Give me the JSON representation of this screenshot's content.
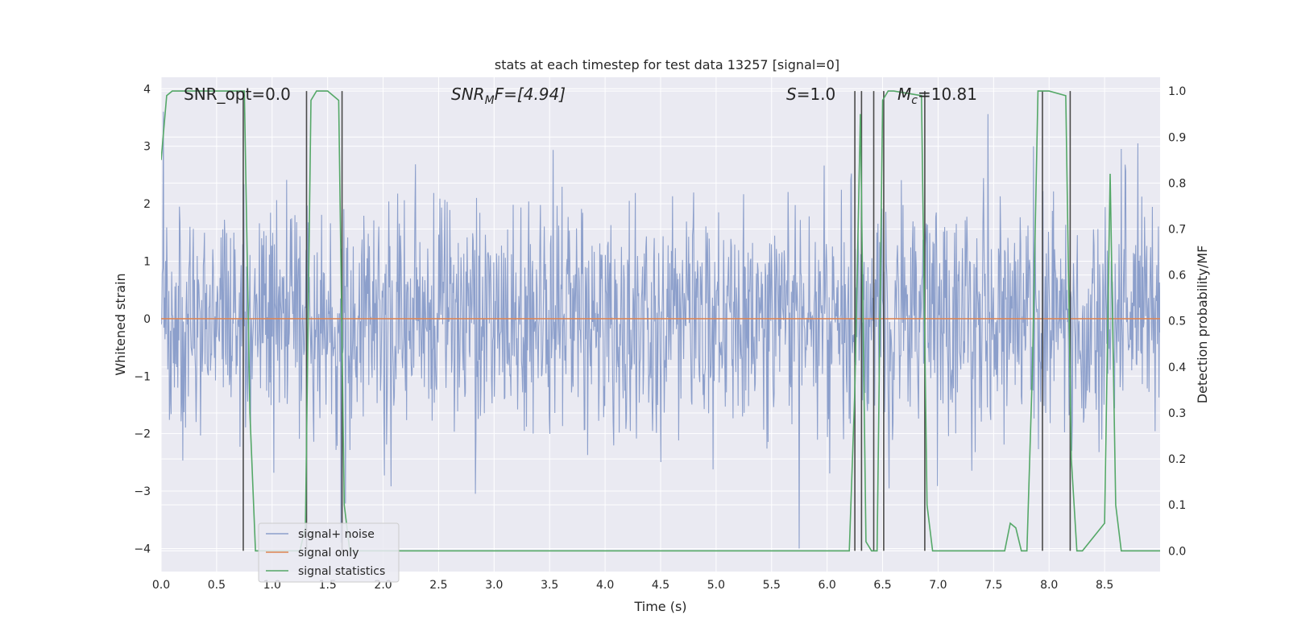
{
  "chart_data": {
    "type": "line",
    "title": "stats at each timestep for test data 13257 [signal=0]",
    "xlabel": "Time (s)",
    "ylabel": "Whitened strain",
    "y2label": "Detection probability/MF",
    "xlim": [
      0.0,
      9.0
    ],
    "ylim": [
      -4.4,
      4.2
    ],
    "y2lim": [
      -0.045,
      1.03
    ],
    "xticks": [
      "0.0",
      "0.5",
      "1.0",
      "1.5",
      "2.0",
      "2.5",
      "3.0",
      "3.5",
      "4.0",
      "4.5",
      "5.0",
      "5.5",
      "6.0",
      "6.5",
      "7.0",
      "7.5",
      "8.0",
      "8.5"
    ],
    "yticks": [
      "−4",
      "−3",
      "−2",
      "−1",
      "0",
      "1",
      "2",
      "3",
      "4"
    ],
    "y2ticks": [
      "0.0",
      "0.1",
      "0.2",
      "0.3",
      "0.4",
      "0.5",
      "0.6",
      "0.7",
      "0.8",
      "0.9",
      "1.0"
    ],
    "grid": true,
    "legend_position": "lower-left",
    "annotations": {
      "snr_opt": "SNR_opt=0.0",
      "snr_mf_pre": "SNR",
      "snr_mf_sub": "M",
      "snr_mf_post": "F=[4.94]",
      "s_sym": "S",
      "s_val": "=1.0",
      "mc_sym": "M",
      "mc_sub": "c",
      "mc_val": "=10.81"
    },
    "colors": {
      "noise": "#8c9fcb",
      "signal": "#dd8452",
      "stats": "#55a868",
      "vlines": "#4a4a4a",
      "plot_bg": "#eaeaf2",
      "grid": "#ffffff"
    },
    "series": [
      {
        "name": "signal+ noise",
        "kind": "noise",
        "n_samples": 1800,
        "std": 1.0,
        "clip": [
          -4.0,
          3.9
        ],
        "spikes": [
          [
            0.02,
            3.6
          ],
          [
            5.75,
            -4.0
          ],
          [
            1.62,
            -3.9
          ],
          [
            7.86,
            3.0
          ],
          [
            8.8,
            3.05
          ]
        ]
      },
      {
        "name": "signal only",
        "kind": "line",
        "x": [
          0.0,
          9.0
        ],
        "y": [
          0.0,
          0.0
        ]
      },
      {
        "name": "signal statistics",
        "kind": "line",
        "axis": "right",
        "x": [
          0.0,
          0.05,
          0.1,
          0.7,
          0.75,
          0.8,
          0.85,
          1.25,
          1.3,
          1.35,
          1.4,
          1.5,
          1.6,
          1.65,
          1.7,
          6.2,
          6.25,
          6.3,
          6.35,
          6.4,
          6.45,
          6.5,
          6.55,
          6.6,
          6.85,
          6.9,
          6.95,
          7.25,
          7.6,
          7.65,
          7.7,
          7.75,
          7.8,
          7.85,
          7.9,
          7.95,
          8.0,
          8.15,
          8.2,
          8.25,
          8.3,
          8.5,
          8.55,
          8.6,
          8.65,
          8.7,
          8.75,
          9.0
        ],
        "y": [
          0.85,
          0.99,
          1.0,
          1.0,
          1.0,
          0.3,
          0.0,
          0.0,
          0.05,
          0.98,
          1.0,
          1.0,
          0.98,
          0.1,
          0.0,
          0.0,
          0.35,
          0.95,
          0.02,
          0.0,
          0.0,
          0.98,
          1.0,
          1.0,
          0.99,
          0.1,
          0.0,
          0.0,
          0.0,
          0.06,
          0.05,
          0.0,
          0.0,
          0.4,
          1.0,
          1.0,
          1.0,
          0.99,
          0.2,
          0.0,
          0.0,
          0.06,
          0.82,
          0.1,
          0.0,
          0.0,
          0.0,
          0.0
        ]
      }
    ],
    "vertical_lines": [
      {
        "x": 0.74,
        "y0": 0.0,
        "y1": 1.0
      },
      {
        "x": 1.31,
        "y0": 0.0,
        "y1": 1.0
      },
      {
        "x": 1.63,
        "y0": 0.0,
        "y1": 1.0
      },
      {
        "x": 6.25,
        "y0": 0.0,
        "y1": 1.0
      },
      {
        "x": 6.31,
        "y0": 0.0,
        "y1": 1.0
      },
      {
        "x": 6.42,
        "y0": 0.0,
        "y1": 1.0
      },
      {
        "x": 6.51,
        "y0": 0.0,
        "y1": 1.0
      },
      {
        "x": 6.88,
        "y0": 0.0,
        "y1": 1.0
      },
      {
        "x": 7.94,
        "y0": 0.0,
        "y1": 1.0
      },
      {
        "x": 8.19,
        "y0": 0.0,
        "y1": 1.0
      }
    ]
  }
}
